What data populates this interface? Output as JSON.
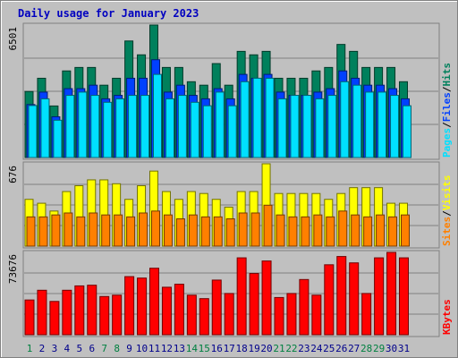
{
  "title": "Daily usage for January 2023",
  "colors": {
    "hits": "#00805c",
    "files": "#0040ff",
    "pages": "#00e0ff",
    "visits": "#ffff00",
    "sites": "#ff8000",
    "kbytes": "#ff0000",
    "weekday_label": "#00008b",
    "weekend_label": "#008040",
    "panel_bg": "#c0c0c0"
  },
  "chart_data": [
    {
      "type": "bar",
      "panel": "hits-files-pages",
      "max_label": "6501",
      "ylim": [
        0,
        6501
      ],
      "categories": [
        "1",
        "2",
        "3",
        "4",
        "5",
        "6",
        "7",
        "8",
        "9",
        "10",
        "11",
        "12",
        "13",
        "14",
        "15",
        "16",
        "17",
        "18",
        "19",
        "20",
        "21",
        "22",
        "23",
        "24",
        "25",
        "26",
        "27",
        "28",
        "29",
        "30",
        "31"
      ],
      "weekend": [
        true,
        false,
        false,
        false,
        false,
        false,
        true,
        true,
        false,
        false,
        false,
        false,
        false,
        true,
        true,
        false,
        false,
        false,
        false,
        false,
        true,
        true,
        false,
        false,
        false,
        false,
        false,
        true,
        true,
        false,
        false
      ],
      "legend": [
        {
          "label": "Pages",
          "color_key": "pages"
        },
        {
          "label": "/",
          "color_key": "none"
        },
        {
          "label": "Files",
          "color_key": "files"
        },
        {
          "label": "/",
          "color_key": "none"
        },
        {
          "label": "Hits",
          "color_key": "hits"
        }
      ],
      "series": [
        {
          "name": "Hits",
          "color_key": "hits",
          "values": [
            3240,
            3890,
            2530,
            4250,
            4420,
            4420,
            3550,
            3890,
            5720,
            5040,
            6501,
            4420,
            4420,
            3720,
            3550,
            4610,
            3550,
            5210,
            5040,
            5210,
            3890,
            3890,
            3890,
            4250,
            4420,
            5550,
            5210,
            4420,
            4420,
            4420,
            3720
          ]
        },
        {
          "name": "Files",
          "color_key": "files",
          "values": [
            2600,
            3210,
            2000,
            3380,
            3380,
            3550,
            2880,
            3050,
            3890,
            3890,
            4800,
            3210,
            3550,
            3050,
            2880,
            3380,
            2880,
            4080,
            3890,
            4080,
            3210,
            3050,
            3050,
            3210,
            3380,
            4250,
            3890,
            3550,
            3550,
            3380,
            2880
          ]
        },
        {
          "name": "Pages",
          "color_key": "pages",
          "values": [
            2550,
            2880,
            1830,
            3050,
            3210,
            3050,
            2710,
            2880,
            3050,
            3050,
            4080,
            2880,
            3050,
            2710,
            2540,
            3210,
            2540,
            3720,
            3890,
            3890,
            2880,
            3050,
            3050,
            2880,
            3050,
            3720,
            3550,
            3210,
            3210,
            3050,
            2540
          ]
        }
      ]
    },
    {
      "type": "bar",
      "panel": "visits-sites",
      "max_label": "676",
      "ylim": [
        0,
        676
      ],
      "legend": [
        {
          "label": "Sites",
          "color_key": "sites"
        },
        {
          "label": "/",
          "color_key": "none"
        },
        {
          "label": "Visits",
          "color_key": "visits"
        }
      ],
      "series": [
        {
          "name": "Visits",
          "color_key": "visits",
          "values": [
            384,
            352,
            288,
            448,
            496,
            544,
            544,
            512,
            384,
            496,
            616,
            448,
            384,
            448,
            432,
            384,
            320,
            448,
            448,
            676,
            432,
            432,
            432,
            432,
            384,
            432,
            480,
            480,
            480,
            352,
            352
          ]
        },
        {
          "name": "Sites",
          "color_key": "sites",
          "values": [
            240,
            240,
            256,
            272,
            240,
            272,
            256,
            256,
            240,
            272,
            288,
            256,
            224,
            256,
            240,
            240,
            224,
            272,
            272,
            336,
            256,
            240,
            240,
            256,
            240,
            288,
            256,
            240,
            256,
            240,
            256
          ]
        }
      ]
    },
    {
      "type": "bar",
      "panel": "kbytes",
      "max_label": "73676",
      "ylim": [
        0,
        73676
      ],
      "legend": [
        {
          "label": "KBytes",
          "color_key": "kbytes"
        }
      ],
      "series": [
        {
          "name": "KBytes",
          "color_key": "kbytes",
          "values": [
            31100,
            39800,
            29800,
            39800,
            43700,
            44300,
            34200,
            35400,
            52000,
            50700,
            59500,
            42500,
            45200,
            35400,
            32300,
            48900,
            36900,
            68800,
            54800,
            66000,
            33300,
            36900,
            49400,
            35400,
            62600,
            70000,
            64300,
            36900,
            68800,
            73676,
            68800
          ]
        }
      ]
    }
  ]
}
